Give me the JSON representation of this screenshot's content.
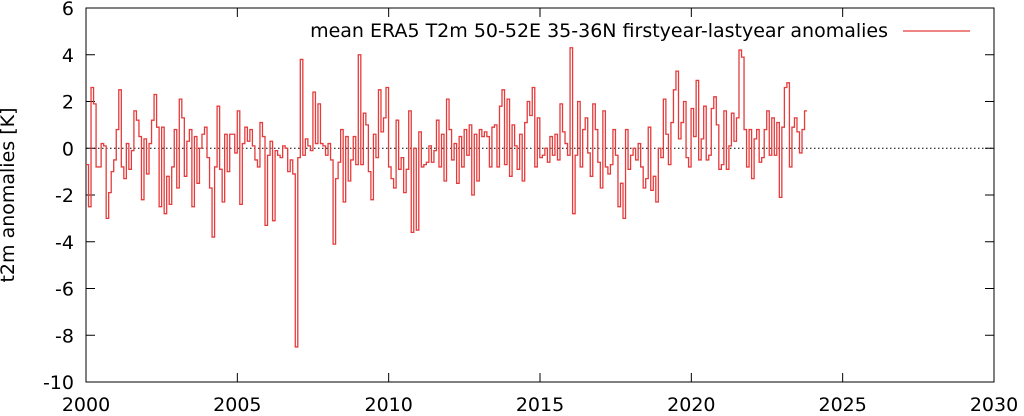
{
  "chart_data": {
    "type": "line",
    "title": "",
    "xlabel": "",
    "ylabel": "t2m anomalies [K]",
    "xlim": [
      2000,
      2030
    ],
    "ylim": [
      -10,
      6
    ],
    "xticks": [
      2000,
      2005,
      2010,
      2015,
      2020,
      2025,
      2030
    ],
    "yticks": [
      6,
      4,
      2,
      0,
      -2,
      -4,
      -6,
      -8,
      -10
    ],
    "step": true,
    "grid": false,
    "zero_line": {
      "style": "dotted",
      "color": "#000000"
    },
    "legend": {
      "position": "top-right"
    },
    "series": [
      {
        "name": "mean ERA5 T2m 50-52E 35-36N firstyear-lastyear anomalies",
        "color": "#e53b3b",
        "start": 2000.0,
        "step_years": 0.0833,
        "values": [
          -0.7,
          -2.5,
          2.6,
          1.9,
          -0.8,
          -0.8,
          0.2,
          0.1,
          -3.0,
          -1.9,
          -1.0,
          -0.5,
          0.8,
          2.5,
          -0.8,
          -1.3,
          0.2,
          -0.9,
          -0.1,
          1.6,
          1.2,
          0.5,
          -2.2,
          0.4,
          -1.1,
          0.2,
          1.2,
          2.3,
          0.9,
          -2.5,
          0.9,
          -2.8,
          -1.2,
          -2.4,
          -0.8,
          0.8,
          -1.7,
          2.1,
          1.3,
          -1.2,
          0.3,
          0.8,
          -2.5,
          0.5,
          -1.5,
          0.0,
          0.6,
          0.9,
          -0.4,
          -1.7,
          -3.8,
          -0.8,
          1.8,
          -0.9,
          -2.3,
          0.6,
          -1.0,
          0.6,
          0.6,
          -0.2,
          1.6,
          -2.4,
          0.2,
          0.9,
          0.3,
          0.8,
          0.1,
          -0.5,
          -0.8,
          1.1,
          0.5,
          -3.3,
          -0.3,
          0.3,
          -3.1,
          -0.1,
          -0.3,
          -0.4,
          0.1,
          0.0,
          -1.0,
          -0.5,
          -1.1,
          -8.5,
          -0.4,
          3.8,
          -0.3,
          0.4,
          0.1,
          -0.1,
          2.4,
          0.2,
          1.9,
          0.2,
          0.1,
          -0.3,
          0.2,
          -0.5,
          -4.1,
          -1.3,
          -0.6,
          0.8,
          -2.3,
          0.5,
          -1.4,
          -0.5,
          0.5,
          -0.7,
          4.0,
          -0.7,
          1.5,
          1.0,
          -1.0,
          -2.2,
          0.6,
          -0.4,
          2.5,
          0.7,
          1.3,
          2.6,
          -0.8,
          -1.3,
          -1.7,
          1.2,
          -0.9,
          -0.4,
          -1.9,
          -0.9,
          1.6,
          -3.6,
          0.0,
          -3.5,
          0.7,
          -0.8,
          -0.7,
          -0.6,
          0.1,
          -0.6,
          -0.1,
          1.2,
          -0.8,
          0.6,
          -1.4,
          2.1,
          0.8,
          -0.5,
          0.2,
          -1.5,
          0.5,
          -0.8,
          0.8,
          -0.3,
          1.0,
          -2.0,
          0.6,
          -1.4,
          0.8,
          0.5,
          0.7,
          0.5,
          -0.8,
          0.9,
          1.0,
          -0.8,
          1.8,
          2.5,
          -0.7,
          2.1,
          -1.2,
          1.0,
          0.1,
          -0.9,
          0.6,
          -1.4,
          1.1,
          2.0,
          1.4,
          2.6,
          -0.8,
          1.3,
          -0.4,
          -0.3,
          0.0,
          -0.6,
          0.5,
          -0.3,
          0.6,
          -0.5,
          1.9,
          0.7,
          0.2,
          -0.3,
          4.3,
          -2.8,
          -0.3,
          2.0,
          -0.8,
          0.8,
          1.3,
          -0.2,
          -1.2,
          1.9,
          0.8,
          -0.6,
          -1.7,
          1.6,
          -0.8,
          -1.1,
          -0.7,
          0.8,
          -0.3,
          -2.5,
          -1.5,
          -3.0,
          0.8,
          -0.9,
          -0.3,
          0.0,
          -0.5,
          0.2,
          -0.8,
          -1.7,
          -1.3,
          0.9,
          -1.8,
          -1.2,
          -2.3,
          0.0,
          -0.4,
          2.1,
          0.6,
          -0.7,
          1.1,
          2.5,
          3.3,
          0.4,
          1.1,
          2.0,
          -0.4,
          -0.8,
          1.7,
          0.5,
          2.9,
          -0.5,
          0.4,
          1.8,
          -0.5,
          -0.3,
          1.7,
          2.2,
          1.0,
          -0.9,
          -0.7,
          1.6,
          -0.9,
          0.1,
          1.5,
          0.3,
          1.3,
          4.2,
          3.9,
          0.8,
          -0.8,
          0.8,
          -1.3,
          0.4,
          0.8,
          -0.6,
          -0.4,
          0.8,
          1.6,
          -0.3,
          1.3,
          -0.3,
          1.1,
          -2.1,
          0.9,
          2.6,
          2.8,
          -0.8,
          0.9,
          1.3,
          0.7,
          -0.2,
          0.8,
          1.6
        ]
      }
    ]
  }
}
